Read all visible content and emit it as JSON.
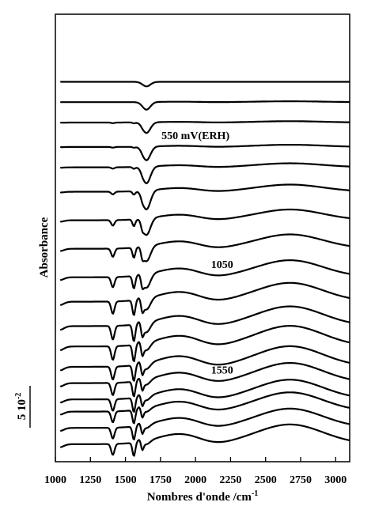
{
  "chart_data": {
    "type": "line",
    "title": "",
    "xlabel": "Nombres d'onde /cm",
    "xlabel_sup": "-1",
    "ylabel": "Absorbance",
    "xlim": [
      1000,
      3100
    ],
    "x_reversed": false,
    "xticks": [
      1000,
      1250,
      1500,
      1750,
      2000,
      2250,
      2500,
      2750,
      3000
    ],
    "scale_bar_label": "5 10",
    "scale_bar_sup": "-2",
    "scale_bar_value": 0.05,
    "grid": false,
    "legend": "none",
    "annotations": [
      {
        "text": "550 mV(ERH)",
        "series_index": 3
      },
      {
        "text": "1050",
        "series_index": 8
      },
      {
        "text": "1550",
        "series_index": 13
      }
    ],
    "series_count": 18,
    "band_features": {
      "broad_band_center_cm": 2680,
      "broad_band_secondary_cm": 1900,
      "minimum_cm": 2120,
      "sharp_bands_cm": [
        1410,
        1560,
        1620,
        1650
      ]
    },
    "series": [
      {
        "offset": 0.9,
        "broad": 0.0,
        "dip1650": 0.06,
        "bands": 0.0
      },
      {
        "offset": 0.85,
        "broad": 0.02,
        "dip1650": 0.1,
        "bands": 0.0
      },
      {
        "offset": 0.8,
        "broad": 0.03,
        "dip1650": 0.14,
        "bands": 0.01
      },
      {
        "offset": 0.74,
        "broad": 0.05,
        "dip1650": 0.18,
        "bands": 0.01
      },
      {
        "offset": 0.69,
        "broad": 0.09,
        "dip1650": 0.22,
        "bands": 0.02
      },
      {
        "offset": 0.63,
        "broad": 0.16,
        "dip1650": 0.25,
        "bands": 0.04
      },
      {
        "offset": 0.56,
        "broad": 0.24,
        "dip1650": 0.22,
        "bands": 0.08
      },
      {
        "offset": 0.49,
        "broad": 0.32,
        "dip1650": 0.2,
        "bands": 0.12
      },
      {
        "offset": 0.42,
        "broad": 0.38,
        "dip1650": 0.18,
        "bands": 0.15
      },
      {
        "offset": 0.36,
        "broad": 0.42,
        "dip1650": 0.15,
        "bands": 0.18
      },
      {
        "offset": 0.3,
        "broad": 0.44,
        "dip1650": 0.13,
        "bands": 0.2
      },
      {
        "offset": 0.25,
        "broad": 0.46,
        "dip1650": 0.1,
        "bands": 0.2
      },
      {
        "offset": 0.2,
        "broad": 0.46,
        "dip1650": 0.08,
        "bands": 0.19
      },
      {
        "offset": 0.16,
        "broad": 0.45,
        "dip1650": 0.07,
        "bands": 0.18
      },
      {
        "offset": 0.12,
        "broad": 0.44,
        "dip1650": 0.06,
        "bands": 0.17
      },
      {
        "offset": 0.09,
        "broad": 0.43,
        "dip1650": 0.05,
        "bands": 0.16
      },
      {
        "offset": 0.05,
        "broad": 0.43,
        "dip1650": 0.05,
        "bands": 0.16
      },
      {
        "offset": 0.01,
        "broad": 0.44,
        "dip1650": 0.05,
        "bands": 0.16
      }
    ]
  }
}
